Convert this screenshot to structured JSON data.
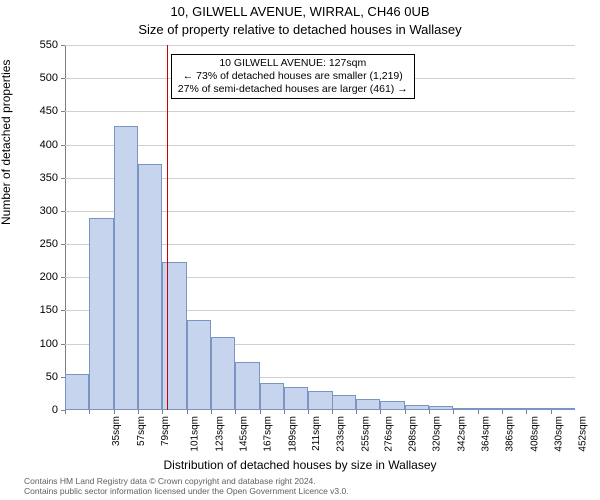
{
  "title": "10, GILWELL AVENUE, WIRRAL, CH46 0UB",
  "subtitle": "Size of property relative to detached houses in Wallasey",
  "ylabel": "Number of detached properties",
  "xlabel": "Distribution of detached houses by size in Wallasey",
  "attribution": {
    "line1": "Contains HM Land Registry data © Crown copyright and database right 2024.",
    "line2": "Contains public sector information licensed under the Open Government Licence v3.0."
  },
  "callout": {
    "line1": "10 GILWELL AVENUE: 127sqm",
    "line2": "← 73% of detached houses are smaller (1,219)",
    "line3": "27% of semi-detached houses are larger (461) →"
  },
  "chart": {
    "type": "histogram",
    "background_color": "#ffffff",
    "grid_color": "#d0d0d0",
    "axis_color": "#808080",
    "bar_fill": "#c6d5ed",
    "bar_stroke": "#7a95c2",
    "marker_color": "#cc0000",
    "marker_value": 127,
    "ylim": [
      0,
      550
    ],
    "ytick_step": 50,
    "bar_width_value": 22,
    "bars": [
      {
        "x": 35,
        "y": 55
      },
      {
        "x": 57,
        "y": 290
      },
      {
        "x": 79,
        "y": 428
      },
      {
        "x": 101,
        "y": 370
      },
      {
        "x": 123,
        "y": 223
      },
      {
        "x": 145,
        "y": 135
      },
      {
        "x": 167,
        "y": 110
      },
      {
        "x": 189,
        "y": 72
      },
      {
        "x": 211,
        "y": 40
      },
      {
        "x": 233,
        "y": 35
      },
      {
        "x": 255,
        "y": 28
      },
      {
        "x": 276,
        "y": 22
      },
      {
        "x": 298,
        "y": 17
      },
      {
        "x": 320,
        "y": 13
      },
      {
        "x": 342,
        "y": 8
      },
      {
        "x": 364,
        "y": 6
      },
      {
        "x": 386,
        "y": 3
      },
      {
        "x": 408,
        "y": 3
      },
      {
        "x": 430,
        "y": 1
      },
      {
        "x": 452,
        "y": 1
      },
      {
        "x": 474,
        "y": 2
      }
    ],
    "x_unit": "sqm"
  }
}
